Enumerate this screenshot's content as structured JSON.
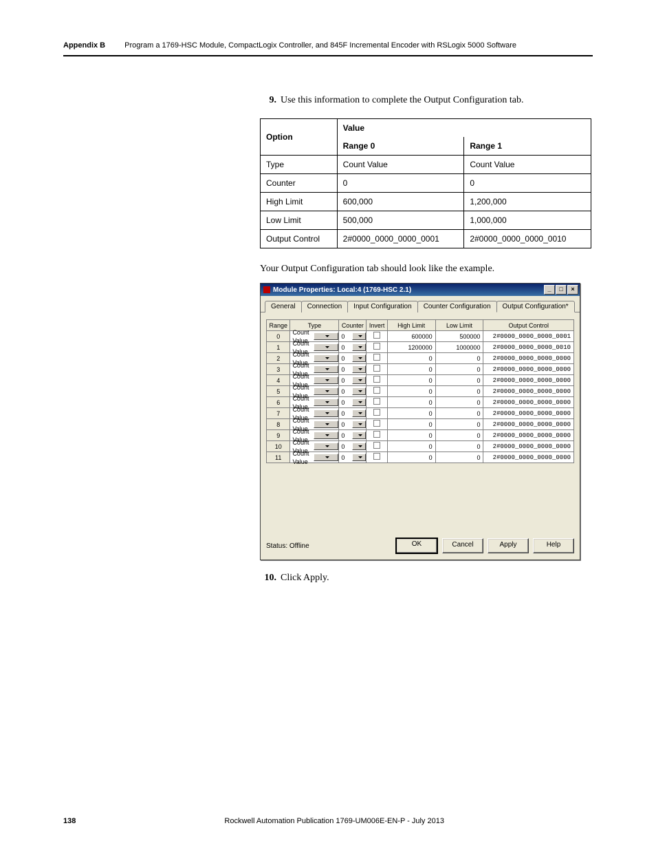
{
  "header": {
    "appendix": "Appendix B",
    "title": "Program a 1769-HSC Module, CompactLogix Controller, and 845F Incremental Encoder with RSLogix 5000 Software"
  },
  "step9": {
    "number": "9.",
    "text": "Use this information to complete the Output Configuration tab."
  },
  "config_table": {
    "headers": {
      "option": "Option",
      "value": "Value",
      "range0": "Range 0",
      "range1": "Range 1"
    },
    "rows": [
      {
        "option": "Type",
        "r0": "Count Value",
        "r1": "Count Value"
      },
      {
        "option": "Counter",
        "r0": "0",
        "r1": "0"
      },
      {
        "option": "High Limit",
        "r0": "600,000",
        "r1": "1,200,000"
      },
      {
        "option": "Low Limit",
        "r0": "500,000",
        "r1": "1,000,000"
      },
      {
        "option": "Output Control",
        "r0": "2#0000_0000_0000_0001",
        "r1": "2#0000_0000_0000_0010"
      }
    ]
  },
  "follow_text": "Your Output Configuration tab should look like the example.",
  "dialog": {
    "title": "Module Properties: Local:4 (1769-HSC 2.1)",
    "window_buttons": {
      "min": "_",
      "max": "□",
      "close": "×"
    },
    "tabs": {
      "general": "General",
      "connection": "Connection",
      "input": "Input Configuration",
      "counter": "Counter Configuration",
      "output": "Output Configuration*"
    },
    "grid_headers": {
      "range": "Range",
      "type": "Type",
      "counter": "Counter",
      "invert": "Invert",
      "high": "High Limit",
      "low": "Low Limit",
      "out": "Output Control"
    },
    "rows": [
      {
        "range": "0",
        "type": "Count Value",
        "counter": "0",
        "high": "600000",
        "low": "500000",
        "out": "2#0000_0000_0000_0001"
      },
      {
        "range": "1",
        "type": "Count Value",
        "counter": "0",
        "high": "1200000",
        "low": "1000000",
        "out": "2#0000_0000_0000_0010"
      },
      {
        "range": "2",
        "type": "Count Value",
        "counter": "0",
        "high": "0",
        "low": "0",
        "out": "2#0000_0000_0000_0000"
      },
      {
        "range": "3",
        "type": "Count Value",
        "counter": "0",
        "high": "0",
        "low": "0",
        "out": "2#0000_0000_0000_0000"
      },
      {
        "range": "4",
        "type": "Count Value",
        "counter": "0",
        "high": "0",
        "low": "0",
        "out": "2#0000_0000_0000_0000"
      },
      {
        "range": "5",
        "type": "Count Value",
        "counter": "0",
        "high": "0",
        "low": "0",
        "out": "2#0000_0000_0000_0000"
      },
      {
        "range": "6",
        "type": "Count Value",
        "counter": "0",
        "high": "0",
        "low": "0",
        "out": "2#0000_0000_0000_0000"
      },
      {
        "range": "7",
        "type": "Count Value",
        "counter": "0",
        "high": "0",
        "low": "0",
        "out": "2#0000_0000_0000_0000"
      },
      {
        "range": "8",
        "type": "Count Value",
        "counter": "0",
        "high": "0",
        "low": "0",
        "out": "2#0000_0000_0000_0000"
      },
      {
        "range": "9",
        "type": "Count Value",
        "counter": "0",
        "high": "0",
        "low": "0",
        "out": "2#0000_0000_0000_0000"
      },
      {
        "range": "10",
        "type": "Count Value",
        "counter": "0",
        "high": "0",
        "low": "0",
        "out": "2#0000_0000_0000_0000"
      },
      {
        "range": "11",
        "type": "Count Value",
        "counter": "0",
        "high": "0",
        "low": "0",
        "out": "2#0000_0000_0000_0000"
      }
    ],
    "status": "Status:  Offline",
    "buttons": {
      "ok": "OK",
      "cancel": "Cancel",
      "apply": "Apply",
      "help": "Help"
    }
  },
  "step10": {
    "number": "10.",
    "text": "Click Apply."
  },
  "footer": {
    "page": "138",
    "text": "Rockwell Automation Publication 1769-UM006E-EN-P - July 2013"
  }
}
